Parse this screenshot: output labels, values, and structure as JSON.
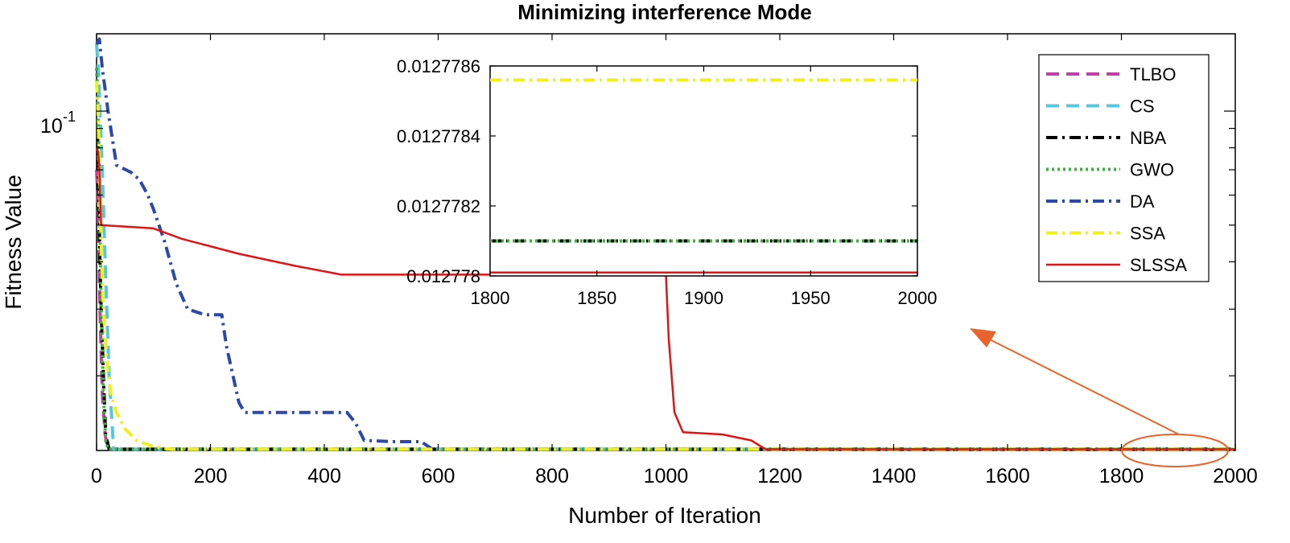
{
  "chart_data": [
    {
      "type": "line",
      "title": "Minimizing interference Mode",
      "xlabel": "Number of Iteration",
      "ylabel": "Fitness Value",
      "xlim": [
        0,
        2000
      ],
      "ylim": [
        0.0127,
        0.16
      ],
      "yscale": "log",
      "x_ticks": [
        "0",
        "200",
        "400",
        "600",
        "800",
        "1000",
        "1200",
        "1400",
        "1600",
        "1800",
        "2000"
      ],
      "y_tick_label": {
        "base": "10",
        "exponent": "-1"
      },
      "grid": false,
      "legend_position": "top-right",
      "series": [
        {
          "name": "TLBO",
          "color": "#c040a8",
          "style": "dashed",
          "x": [
            0,
            2,
            4,
            6,
            10,
            15,
            20,
            2000
          ],
          "y": [
            0.07,
            0.06,
            0.045,
            0.03,
            0.018,
            0.014,
            0.0128,
            0.0128
          ]
        },
        {
          "name": "CS",
          "color": "#55c8dc",
          "style": "dashed",
          "x": [
            0,
            3,
            6,
            10,
            14,
            18,
            22,
            30,
            2000
          ],
          "y": [
            0.15,
            0.13,
            0.1,
            0.07,
            0.045,
            0.03,
            0.02,
            0.0128,
            0.0128
          ]
        },
        {
          "name": "NBA",
          "color": "#000000",
          "style": "dashdot",
          "x": [
            0,
            2,
            4,
            6,
            8,
            12,
            16,
            22,
            2000
          ],
          "y": [
            0.085,
            0.085,
            0.06,
            0.04,
            0.03,
            0.02,
            0.014,
            0.0128,
            0.0128
          ]
        },
        {
          "name": "GWO",
          "color": "#3cb43c",
          "style": "dotted",
          "x": [
            0,
            2,
            4,
            6,
            8,
            12,
            16,
            20,
            2000
          ],
          "y": [
            0.13,
            0.11,
            0.08,
            0.05,
            0.03,
            0.018,
            0.0135,
            0.0128,
            0.0128
          ]
        },
        {
          "name": "DA",
          "color": "#2c48a8",
          "style": "dashdot",
          "x": [
            0,
            5,
            10,
            20,
            35,
            60,
            75,
            90,
            100,
            120,
            140,
            160,
            190,
            220,
            228,
            250,
            260,
            300,
            440,
            455,
            470,
            520,
            570,
            590,
            2000
          ],
          "y": [
            0.15,
            0.155,
            0.13,
            0.1,
            0.072,
            0.069,
            0.066,
            0.06,
            0.055,
            0.045,
            0.035,
            0.03,
            0.029,
            0.029,
            0.024,
            0.017,
            0.016,
            0.016,
            0.016,
            0.015,
            0.0135,
            0.0134,
            0.0134,
            0.0128,
            0.0128
          ]
        },
        {
          "name": "SSA",
          "color": "#f0f020",
          "style": "dashdot",
          "x": [
            0,
            3,
            5,
            8,
            12,
            18,
            25,
            35,
            50,
            70,
            100,
            130,
            2000
          ],
          "y": [
            0.12,
            0.1,
            0.07,
            0.045,
            0.03,
            0.022,
            0.018,
            0.016,
            0.0145,
            0.0135,
            0.013,
            0.0128,
            0.0128
          ]
        },
        {
          "name": "SLSSA",
          "color": "#e01414",
          "style": "solid",
          "x": [
            0,
            3,
            5,
            8,
            100,
            150,
            250,
            350,
            430,
            1000,
            1005,
            1015,
            1030,
            1100,
            1150,
            1175,
            1200,
            2000
          ],
          "y": [
            0.08,
            0.078,
            0.07,
            0.05,
            0.049,
            0.046,
            0.042,
            0.039,
            0.037,
            0.037,
            0.025,
            0.016,
            0.0142,
            0.014,
            0.0135,
            0.0128,
            0.0128,
            0.0128
          ]
        }
      ]
    },
    {
      "type": "line",
      "title": "",
      "xlim": [
        1800,
        2000
      ],
      "ylim": [
        0.012778,
        0.0127786
      ],
      "x_ticks": [
        "1800",
        "1850",
        "1900",
        "1950",
        "2000"
      ],
      "y_ticks": [
        "0.012778",
        "0.0127782",
        "0.0127784",
        "0.0127786"
      ],
      "grid": false,
      "series": [
        {
          "name": "SSA",
          "color": "#f0f020",
          "style": "dashdot",
          "x": [
            1800,
            2000
          ],
          "y": [
            0.01277856,
            0.01277856
          ]
        },
        {
          "name": "NBA",
          "color": "#000000",
          "style": "dashdot",
          "x": [
            1800,
            2000
          ],
          "y": [
            0.0127781,
            0.0127781
          ]
        },
        {
          "name": "GWO",
          "color": "#3cb43c",
          "style": "dotted",
          "x": [
            1800,
            2000
          ],
          "y": [
            0.0127781,
            0.0127781
          ]
        },
        {
          "name": "SLSSA",
          "color": "#e01414",
          "style": "solid",
          "x": [
            1800,
            2000
          ],
          "y": [
            0.01277801,
            0.01277801
          ]
        }
      ]
    }
  ],
  "annotation": {
    "arrow_color": "#e8642c"
  }
}
